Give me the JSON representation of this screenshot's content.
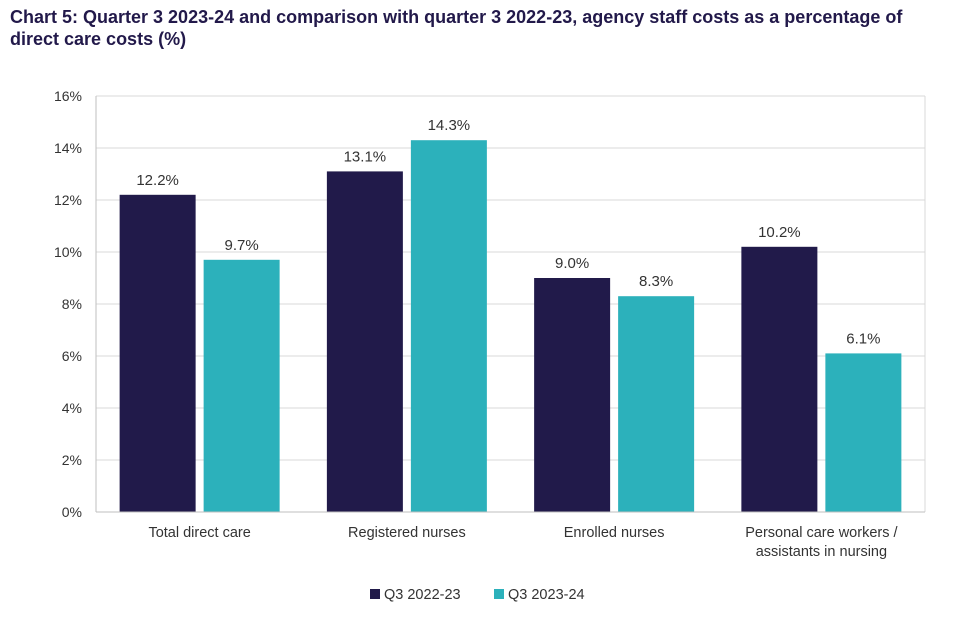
{
  "colors": {
    "series1": "#211a4a",
    "series2": "#2cb1bb",
    "axis": "#bfbfbf",
    "grid": "#d9d9d9",
    "text": "#333333",
    "title": "#22194a"
  },
  "chart_data": {
    "type": "bar",
    "title": "Chart 5: Quarter 3 2023-24 and comparison with quarter 3 2022-23, agency staff costs as a percentage of direct care costs (%)",
    "xlabel": "",
    "ylabel": "",
    "ylim": [
      0,
      16
    ],
    "yticks": [
      0,
      2,
      4,
      6,
      8,
      10,
      12,
      14,
      16
    ],
    "ytick_labels": [
      "0%",
      "2%",
      "4%",
      "6%",
      "8%",
      "10%",
      "12%",
      "14%",
      "16%"
    ],
    "categories": [
      [
        "Total direct care"
      ],
      [
        "Registered nurses"
      ],
      [
        "Enrolled nurses"
      ],
      [
        "Personal care workers /",
        "assistants in nursing"
      ]
    ],
    "series": [
      {
        "name": "Q3 2022-23",
        "values": [
          12.2,
          13.1,
          9.0,
          10.2
        ],
        "labels": [
          "12.2%",
          "13.1%",
          "9.0%",
          "10.2%"
        ]
      },
      {
        "name": "Q3 2023-24",
        "values": [
          9.7,
          14.3,
          8.3,
          6.1
        ],
        "labels": [
          "9.7%",
          "14.3%",
          "8.3%",
          "6.1%"
        ]
      }
    ],
    "grid": true,
    "legend": "bottom-center"
  }
}
